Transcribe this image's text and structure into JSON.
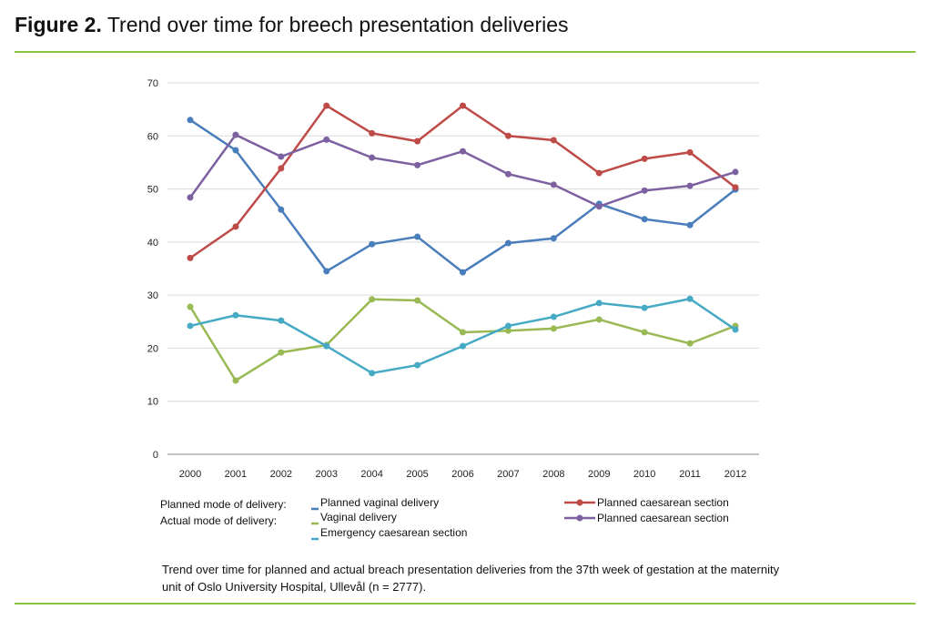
{
  "figure": {
    "label": "Figure 2.",
    "title": "Trend over time for breech presentation deliveries",
    "caption": "Trend over time for planned and actual breach presentation deliveries from the 37th week of gestation at the maternity unit of Oslo University Hospital, Ullevål (n = 2777)."
  },
  "legend": {
    "planned_label": "Planned mode of delivery:",
    "actual_label": "Actual mode of delivery:"
  },
  "chart_data": {
    "type": "line",
    "x": [
      2000,
      2001,
      2002,
      2003,
      2004,
      2005,
      2006,
      2007,
      2008,
      2009,
      2010,
      2011,
      2012
    ],
    "ylim": [
      0,
      70
    ],
    "yticks": [
      0,
      10,
      20,
      30,
      40,
      50,
      60,
      70
    ],
    "grid": true,
    "legend_placement": "bottom",
    "series": [
      {
        "name": "Planned vaginal delivery",
        "color": "#4a7ebb",
        "legend_marker": "dash",
        "values": [
          63.0,
          57.3,
          46.1,
          34.5,
          39.6,
          41.0,
          34.3,
          39.8,
          40.7,
          47.2,
          44.3,
          43.2,
          49.9
        ]
      },
      {
        "name": "Planned caesarean section",
        "color": "#be4b48",
        "legend_marker": "line-dot",
        "values": [
          37.0,
          42.9,
          53.9,
          65.7,
          60.5,
          59.0,
          65.7,
          60.0,
          59.2,
          53.0,
          55.7,
          56.9,
          50.3
        ]
      },
      {
        "name": "Vaginal delivery",
        "color": "#98b954",
        "legend_marker": "dash",
        "values": [
          27.8,
          13.9,
          19.2,
          20.6,
          29.2,
          29.0,
          23.0,
          23.3,
          23.7,
          25.4,
          23.0,
          20.9,
          24.2
        ]
      },
      {
        "name": "Planned caesarean section",
        "color": "#7d60a0",
        "legend_marker": "line-dot",
        "values": [
          48.4,
          60.2,
          56.1,
          59.3,
          55.9,
          54.5,
          57.1,
          52.8,
          50.8,
          46.7,
          49.7,
          50.6,
          53.2
        ]
      },
      {
        "name": "Emergency caesarean section",
        "color": "#46aac5",
        "legend_marker": "dash",
        "values": [
          24.2,
          26.2,
          25.2,
          20.4,
          15.3,
          16.8,
          20.4,
          24.2,
          25.9,
          28.5,
          27.6,
          29.3,
          23.5
        ]
      }
    ]
  }
}
